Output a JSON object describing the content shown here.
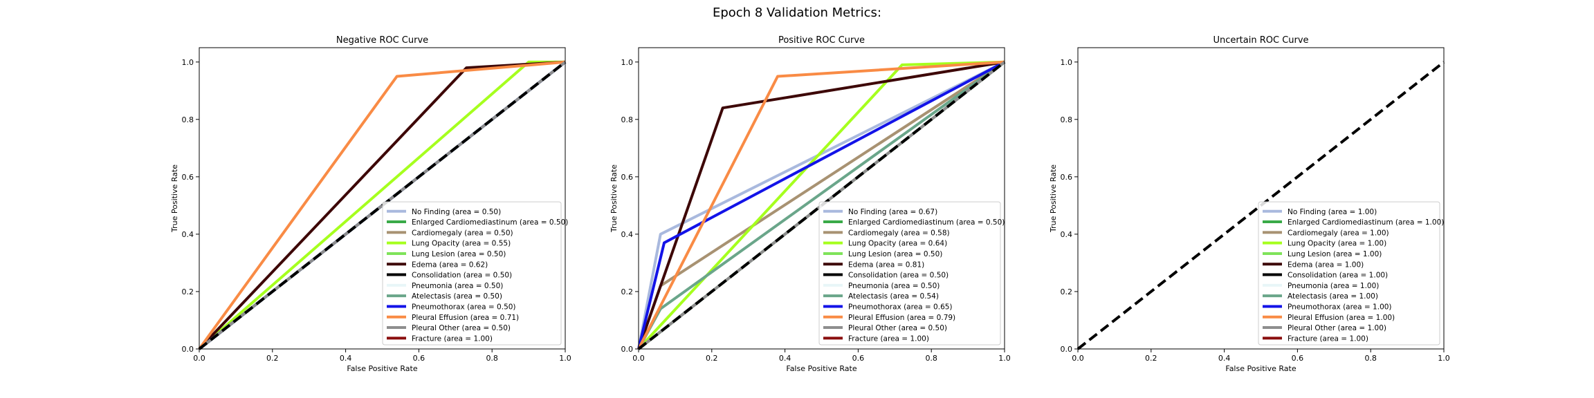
{
  "figure_title": "Epoch 8 Validation Metrics:",
  "colors": {
    "No Finding": "#a9b9de",
    "Enlarged Cardiomediastinum": "#3aaa48",
    "Cardiomegaly": "#a89272",
    "Lung Opacity": "#a6ff1e",
    "Lung Lesion": "#7fe35a",
    "Edema": "#3d0707",
    "Consolidation": "#000000",
    "Pneumonia": "#e8f6f8",
    "Atelectasis": "#6aa68a",
    "Pneumothorax": "#1313e8",
    "Pleural Effusion": "#f98b45",
    "Pleural Other": "#8e8e8e",
    "Fracture": "#8a0e0e",
    "diagonal": "#000000"
  },
  "chart_data": [
    {
      "type": "line",
      "title": "Negative ROC Curve",
      "xlabel": "False Positive Rate",
      "ylabel": "True Positive Rate",
      "xlim": [
        0,
        1
      ],
      "ylim": [
        0,
        1.05
      ],
      "xticks": [
        "0.0",
        "0.2",
        "0.4",
        "0.6",
        "0.8",
        "1.0"
      ],
      "yticks": [
        "0.0",
        "0.2",
        "0.4",
        "0.6",
        "0.8",
        "1.0"
      ],
      "legend_position": "lower-right",
      "series": [
        {
          "name": "No Finding",
          "label": "No Finding (area = 0.50)",
          "x": [
            0,
            1
          ],
          "y": [
            0,
            1
          ]
        },
        {
          "name": "Enlarged Cardiomediastinum",
          "label": "Enlarged Cardiomediastinum (area = 0.50)",
          "x": [
            0,
            1
          ],
          "y": [
            0,
            1
          ]
        },
        {
          "name": "Cardiomegaly",
          "label": "Cardiomegaly (area = 0.50)",
          "x": [
            0,
            1
          ],
          "y": [
            0,
            1
          ]
        },
        {
          "name": "Lung Opacity",
          "label": "Lung Opacity (area = 0.55)",
          "x": [
            0,
            0.9,
            1
          ],
          "y": [
            0,
            1.0,
            1
          ]
        },
        {
          "name": "Lung Lesion",
          "label": "Lung Lesion (area = 0.50)",
          "x": [
            0,
            1
          ],
          "y": [
            0,
            1
          ]
        },
        {
          "name": "Edema",
          "label": "Edema (area = 0.62)",
          "x": [
            0,
            0.73,
            1
          ],
          "y": [
            0,
            0.98,
            1
          ]
        },
        {
          "name": "Consolidation",
          "label": "Consolidation (area = 0.50)",
          "x": [
            0,
            1
          ],
          "y": [
            0,
            1
          ]
        },
        {
          "name": "Pneumonia",
          "label": "Pneumonia (area = 0.50)",
          "x": [
            0,
            1
          ],
          "y": [
            0,
            1
          ]
        },
        {
          "name": "Atelectasis",
          "label": "Atelectasis (area = 0.50)",
          "x": [
            0,
            1
          ],
          "y": [
            0,
            1
          ]
        },
        {
          "name": "Pneumothorax",
          "label": "Pneumothorax (area = 0.50)",
          "x": [
            0,
            1
          ],
          "y": [
            0,
            1
          ]
        },
        {
          "name": "Pleural Effusion",
          "label": "Pleural Effusion (area = 0.71)",
          "x": [
            0,
            0.54,
            1
          ],
          "y": [
            0,
            0.95,
            1
          ]
        },
        {
          "name": "Pleural Other",
          "label": "Pleural Other (area = 0.50)",
          "x": [
            0,
            1
          ],
          "y": [
            0,
            1
          ]
        },
        {
          "name": "Fracture",
          "label": "Fracture (area = 1.00)",
          "x": [],
          "y": []
        }
      ]
    },
    {
      "type": "line",
      "title": "Positive ROC Curve",
      "xlabel": "False Positive Rate",
      "ylabel": "True Positive Rate",
      "xlim": [
        0,
        1
      ],
      "ylim": [
        0,
        1.05
      ],
      "xticks": [
        "0.0",
        "0.2",
        "0.4",
        "0.6",
        "0.8",
        "1.0"
      ],
      "yticks": [
        "0.0",
        "0.2",
        "0.4",
        "0.6",
        "0.8",
        "1.0"
      ],
      "legend_position": "lower-right",
      "series": [
        {
          "name": "No Finding",
          "label": "No Finding (area = 0.67)",
          "x": [
            0,
            0.06,
            1
          ],
          "y": [
            0,
            0.4,
            1
          ]
        },
        {
          "name": "Enlarged Cardiomediastinum",
          "label": "Enlarged Cardiomediastinum (area = 0.50)",
          "x": [
            0,
            1
          ],
          "y": [
            0,
            1
          ]
        },
        {
          "name": "Cardiomegaly",
          "label": "Cardiomegaly (area = 0.58)",
          "x": [
            0,
            0.06,
            1
          ],
          "y": [
            0,
            0.22,
            1
          ]
        },
        {
          "name": "Lung Opacity",
          "label": "Lung Opacity (area = 0.64)",
          "x": [
            0,
            0.72,
            1
          ],
          "y": [
            0,
            0.99,
            1
          ]
        },
        {
          "name": "Lung Lesion",
          "label": "Lung Lesion (area = 0.50)",
          "x": [
            0,
            1
          ],
          "y": [
            0,
            1
          ]
        },
        {
          "name": "Edema",
          "label": "Edema (area = 0.81)",
          "x": [
            0,
            0.23,
            1
          ],
          "y": [
            0,
            0.84,
            1
          ]
        },
        {
          "name": "Consolidation",
          "label": "Consolidation (area = 0.50)",
          "x": [
            0,
            1
          ],
          "y": [
            0,
            1
          ]
        },
        {
          "name": "Pneumonia",
          "label": "Pneumonia (area = 0.50)",
          "x": [
            0,
            1
          ],
          "y": [
            0,
            1
          ]
        },
        {
          "name": "Atelectasis",
          "label": "Atelectasis (area = 0.54)",
          "x": [
            0,
            0.06,
            1
          ],
          "y": [
            0,
            0.14,
            1
          ]
        },
        {
          "name": "Pneumothorax",
          "label": "Pneumothorax (area = 0.65)",
          "x": [
            0,
            0.07,
            1
          ],
          "y": [
            0,
            0.37,
            1
          ]
        },
        {
          "name": "Pleural Effusion",
          "label": "Pleural Effusion (area = 0.79)",
          "x": [
            0,
            0.38,
            1
          ],
          "y": [
            0,
            0.95,
            1
          ]
        },
        {
          "name": "Pleural Other",
          "label": "Pleural Other (area = 0.50)",
          "x": [
            0,
            1
          ],
          "y": [
            0,
            1
          ]
        },
        {
          "name": "Fracture",
          "label": "Fracture (area = 1.00)",
          "x": [],
          "y": []
        }
      ]
    },
    {
      "type": "line",
      "title": "Uncertain ROC Curve",
      "xlabel": "False Positive Rate",
      "ylabel": "True Positive Rate",
      "xlim": [
        0,
        1
      ],
      "ylim": [
        0,
        1.05
      ],
      "xticks": [
        "0.0",
        "0.2",
        "0.4",
        "0.6",
        "0.8",
        "1.0"
      ],
      "yticks": [
        "0.0",
        "0.2",
        "0.4",
        "0.6",
        "0.8",
        "1.0"
      ],
      "legend_position": "lower-right",
      "series": [
        {
          "name": "No Finding",
          "label": "No Finding (area = 1.00)",
          "x": [],
          "y": []
        },
        {
          "name": "Enlarged Cardiomediastinum",
          "label": "Enlarged Cardiomediastinum (area = 1.00)",
          "x": [],
          "y": []
        },
        {
          "name": "Cardiomegaly",
          "label": "Cardiomegaly (area = 1.00)",
          "x": [],
          "y": []
        },
        {
          "name": "Lung Opacity",
          "label": "Lung Opacity (area = 1.00)",
          "x": [],
          "y": []
        },
        {
          "name": "Lung Lesion",
          "label": "Lung Lesion (area = 1.00)",
          "x": [],
          "y": []
        },
        {
          "name": "Edema",
          "label": "Edema (area = 1.00)",
          "x": [],
          "y": []
        },
        {
          "name": "Consolidation",
          "label": "Consolidation (area = 1.00)",
          "x": [],
          "y": []
        },
        {
          "name": "Pneumonia",
          "label": "Pneumonia (area = 1.00)",
          "x": [],
          "y": []
        },
        {
          "name": "Atelectasis",
          "label": "Atelectasis (area = 1.00)",
          "x": [],
          "y": []
        },
        {
          "name": "Pneumothorax",
          "label": "Pneumothorax (area = 1.00)",
          "x": [],
          "y": []
        },
        {
          "name": "Pleural Effusion",
          "label": "Pleural Effusion (area = 1.00)",
          "x": [],
          "y": []
        },
        {
          "name": "Pleural Other",
          "label": "Pleural Other (area = 1.00)",
          "x": [],
          "y": []
        },
        {
          "name": "Fracture",
          "label": "Fracture (area = 1.00)",
          "x": [],
          "y": []
        }
      ]
    }
  ]
}
